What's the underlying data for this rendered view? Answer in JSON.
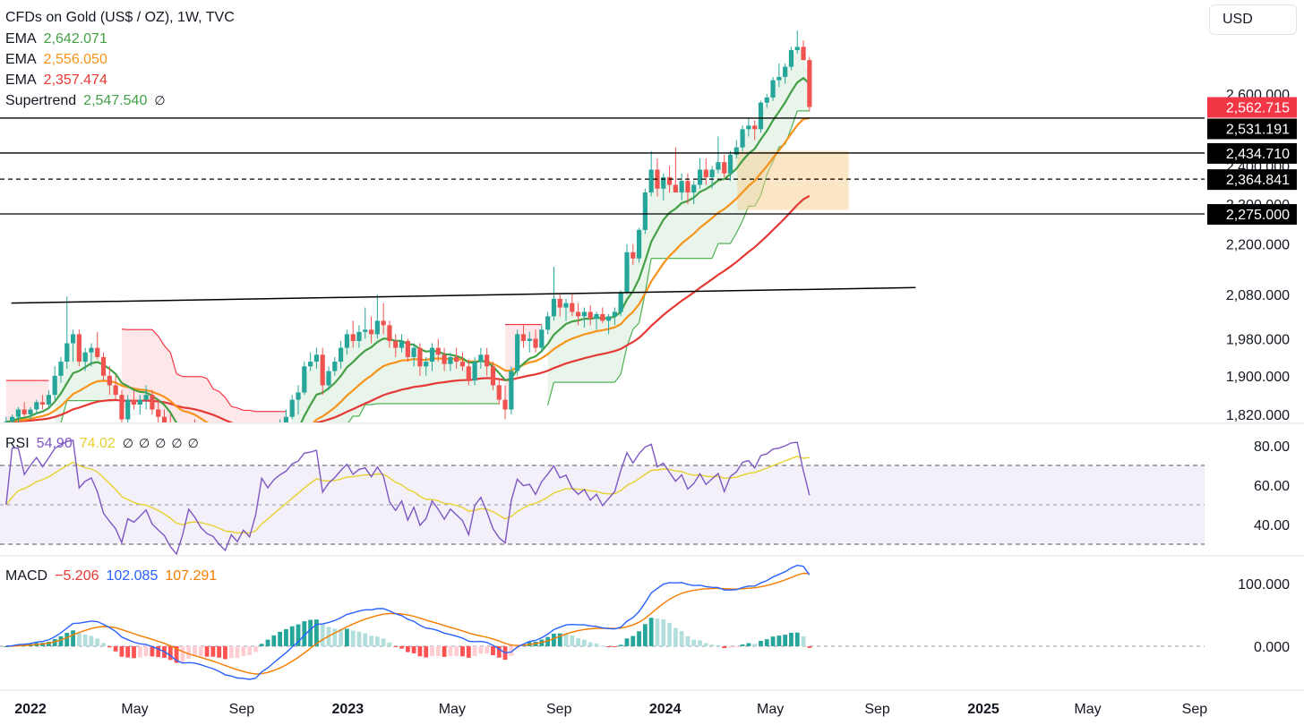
{
  "header": {
    "symbol": "CFDs on Gold (US$ / OZ), 1W, TVC",
    "currency": "USD"
  },
  "legend_main": [
    {
      "label": "EMA",
      "value": "2,642.071",
      "color": "#43a047"
    },
    {
      "label": "EMA",
      "value": "2,556.050",
      "color": "#f7931a"
    },
    {
      "label": "EMA",
      "value": "2,357.474",
      "color": "#e53935"
    },
    {
      "label": "Supertrend",
      "value": "2,547.540",
      "color": "#43a047",
      "extra": "∅"
    }
  ],
  "legend_rsi": {
    "label": "RSI",
    "value": "54.90",
    "value_color": "#7e57c2",
    "ma": "74.02",
    "ma_color": "#e6d12f",
    "extras": [
      "∅",
      "∅",
      "∅",
      "∅",
      "∅"
    ]
  },
  "legend_macd": {
    "label": "MACD",
    "hist": "−5.206",
    "hist_color": "#e53935",
    "macd": "102.085",
    "macd_color": "#2962ff",
    "signal": "107.291",
    "signal_color": "#f57c00"
  },
  "colors": {
    "up": "#26a69a",
    "down": "#ef5350",
    "ema_fast": "#43a047",
    "ema_mid": "#f7931a",
    "ema_slow": "#e53935",
    "rsi": "#7e57c2",
    "rsi_ma": "#e6d12f",
    "macd": "#2962ff",
    "signal": "#f57c00"
  },
  "chart_data": {
    "type": "candlestick",
    "timeframe": "1W",
    "x_ticks": [
      {
        "label": "2022",
        "date": "2022-01-01",
        "bold": true
      },
      {
        "label": "May",
        "date": "2022-05-01"
      },
      {
        "label": "Sep",
        "date": "2022-09-01"
      },
      {
        "label": "2023",
        "date": "2023-01-01",
        "bold": true
      },
      {
        "label": "May",
        "date": "2023-05-01"
      },
      {
        "label": "Sep",
        "date": "2023-09-01"
      },
      {
        "label": "2024",
        "date": "2024-01-01",
        "bold": true
      },
      {
        "label": "May",
        "date": "2024-05-01"
      },
      {
        "label": "Sep",
        "date": "2024-09-01"
      },
      {
        "label": "2025",
        "date": "2025-01-01",
        "bold": true
      },
      {
        "label": "May",
        "date": "2025-05-01"
      },
      {
        "label": "Sep",
        "date": "2025-09-01"
      }
    ],
    "price_axis": {
      "ticks": [
        {
          "value": 1820,
          "label": "1,820.000"
        },
        {
          "value": 1900,
          "label": "1,900.000"
        },
        {
          "value": 1980,
          "label": "1,980.000"
        },
        {
          "value": 2080,
          "label": "2,080.000"
        },
        {
          "value": 2200,
          "label": "2,200.000"
        },
        {
          "value": 2300,
          "label": "2,300.000"
        },
        {
          "value": 2400,
          "label": "2,400.000"
        },
        {
          "value": 2600,
          "label": "2,600.000"
        }
      ],
      "scale": "log"
    },
    "price_labels": [
      {
        "value": 2562.715,
        "label": "2,562.715",
        "bg": "#f23645"
      },
      {
        "value": 2531.191,
        "label": "2,531.191",
        "bg": "#000000"
      },
      {
        "value": 2434.71,
        "label": "2,434.710",
        "bg": "#000000"
      },
      {
        "value": 2364.841,
        "label": "2,364.841",
        "bg": "#000000"
      },
      {
        "value": 2275.0,
        "label": "2,275.000",
        "bg": "#000000"
      }
    ],
    "horizontal_lines": [
      {
        "value": 2531.191,
        "style": "solid"
      },
      {
        "value": 2434.71,
        "style": "solid"
      },
      {
        "value": 2364.841,
        "style": "dashed"
      },
      {
        "value": 2275.0,
        "style": "solid"
      }
    ],
    "trendline": {
      "from": {
        "date": "2021-12-10",
        "price": 2060
      },
      "to": {
        "date": "2024-10-15",
        "price": 2096
      }
    },
    "consolidation_box": {
      "from_date": "2024-03-24",
      "to_date": "2024-07-30",
      "low": 2285,
      "high": 2440
    },
    "candles_ohlc": [
      [
        1800,
        1815,
        1785,
        1805
      ],
      [
        1805,
        1820,
        1795,
        1815
      ],
      [
        1815,
        1835,
        1800,
        1830
      ],
      [
        1830,
        1845,
        1815,
        1820
      ],
      [
        1820,
        1835,
        1810,
        1830
      ],
      [
        1830,
        1850,
        1820,
        1845
      ],
      [
        1845,
        1860,
        1830,
        1840
      ],
      [
        1840,
        1870,
        1830,
        1860
      ],
      [
        1860,
        1920,
        1850,
        1900
      ],
      [
        1900,
        1940,
        1885,
        1930
      ],
      [
        1930,
        2075,
        1915,
        1970
      ],
      [
        1970,
        2000,
        1930,
        1990
      ],
      [
        1990,
        2000,
        1920,
        1930
      ],
      [
        1930,
        1960,
        1910,
        1950
      ],
      [
        1950,
        1970,
        1920,
        1960
      ],
      [
        1960,
        1995,
        1935,
        1940
      ],
      [
        1940,
        1950,
        1890,
        1900
      ],
      [
        1900,
        1920,
        1860,
        1880
      ],
      [
        1880,
        1900,
        1850,
        1860
      ],
      [
        1860,
        1870,
        1790,
        1810
      ],
      [
        1810,
        1860,
        1790,
        1850
      ],
      [
        1850,
        1870,
        1830,
        1840
      ],
      [
        1840,
        1860,
        1820,
        1850
      ],
      [
        1850,
        1880,
        1830,
        1860
      ],
      [
        1860,
        1870,
        1820,
        1830
      ],
      [
        1830,
        1850,
        1800,
        1815
      ],
      [
        1815,
        1830,
        1780,
        1800
      ],
      [
        1800,
        1820,
        1750,
        1760
      ],
      [
        1760,
        1770,
        1700,
        1720
      ],
      [
        1720,
        1760,
        1690,
        1745
      ],
      [
        1745,
        1800,
        1730,
        1790
      ],
      [
        1790,
        1810,
        1760,
        1770
      ],
      [
        1770,
        1780,
        1730,
        1740
      ],
      [
        1740,
        1750,
        1700,
        1720
      ],
      [
        1720,
        1730,
        1680,
        1710
      ],
      [
        1710,
        1730,
        1660,
        1680
      ],
      [
        1680,
        1720,
        1620,
        1650
      ],
      [
        1650,
        1680,
        1630,
        1670
      ],
      [
        1670,
        1680,
        1630,
        1645
      ],
      [
        1645,
        1680,
        1620,
        1660
      ],
      [
        1660,
        1680,
        1630,
        1640
      ],
      [
        1640,
        1680,
        1620,
        1670
      ],
      [
        1670,
        1780,
        1660,
        1770
      ],
      [
        1770,
        1790,
        1740,
        1750
      ],
      [
        1750,
        1790,
        1740,
        1780
      ],
      [
        1780,
        1810,
        1760,
        1800
      ],
      [
        1800,
        1830,
        1785,
        1815
      ],
      [
        1815,
        1860,
        1810,
        1850
      ],
      [
        1850,
        1880,
        1820,
        1865
      ],
      [
        1865,
        1930,
        1860,
        1920
      ],
      [
        1920,
        1950,
        1910,
        1930
      ],
      [
        1930,
        1960,
        1915,
        1945
      ],
      [
        1945,
        1960,
        1860,
        1880
      ],
      [
        1880,
        1920,
        1870,
        1910
      ],
      [
        1910,
        1940,
        1900,
        1930
      ],
      [
        1930,
        1975,
        1915,
        1960
      ],
      [
        1960,
        2000,
        1945,
        1990
      ],
      [
        1990,
        2020,
        1960,
        1975
      ],
      [
        1975,
        2010,
        1960,
        1995
      ],
      [
        1995,
        2050,
        1980,
        2000
      ],
      [
        2000,
        2030,
        1970,
        1990
      ],
      [
        1990,
        2080,
        1980,
        2020
      ],
      [
        2020,
        2060,
        1990,
        2010
      ],
      [
        2010,
        2020,
        1960,
        1975
      ],
      [
        1975,
        1990,
        1940,
        1960
      ],
      [
        1960,
        1990,
        1950,
        1975
      ],
      [
        1975,
        1980,
        1930,
        1940
      ],
      [
        1940,
        1970,
        1920,
        1960
      ],
      [
        1960,
        1970,
        1900,
        1920
      ],
      [
        1920,
        1940,
        1900,
        1930
      ],
      [
        1930,
        1970,
        1910,
        1960
      ],
      [
        1960,
        1980,
        1930,
        1945
      ],
      [
        1945,
        1960,
        1910,
        1925
      ],
      [
        1925,
        1950,
        1910,
        1940
      ],
      [
        1940,
        1960,
        1915,
        1930
      ],
      [
        1930,
        1950,
        1910,
        1920
      ],
      [
        1920,
        1935,
        1880,
        1890
      ],
      [
        1890,
        1940,
        1880,
        1930
      ],
      [
        1930,
        1960,
        1915,
        1945
      ],
      [
        1945,
        1960,
        1900,
        1920
      ],
      [
        1920,
        1930,
        1870,
        1880
      ],
      [
        1880,
        1895,
        1840,
        1850
      ],
      [
        1850,
        1880,
        1810,
        1830
      ],
      [
        1830,
        1920,
        1820,
        1910
      ],
      [
        1910,
        2000,
        1900,
        1990
      ],
      [
        1990,
        2010,
        1960,
        1975
      ],
      [
        1975,
        1995,
        1950,
        1980
      ],
      [
        1980,
        2000,
        1950,
        1960
      ],
      [
        1960,
        2010,
        1950,
        2000
      ],
      [
        2000,
        2040,
        1990,
        2030
      ],
      [
        2030,
        2145,
        2020,
        2070
      ],
      [
        2070,
        2080,
        2030,
        2050
      ],
      [
        2050,
        2070,
        2020,
        2060
      ],
      [
        2060,
        2080,
        2030,
        2040
      ],
      [
        2040,
        2060,
        2010,
        2030
      ],
      [
        2030,
        2050,
        2005,
        2040
      ],
      [
        2040,
        2055,
        2010,
        2025
      ],
      [
        2025,
        2040,
        2000,
        2035
      ],
      [
        2035,
        2050,
        2015,
        2020
      ],
      [
        2020,
        2035,
        1990,
        2030
      ],
      [
        2030,
        2050,
        2010,
        2040
      ],
      [
        2040,
        2090,
        2030,
        2085
      ],
      [
        2085,
        2200,
        2080,
        2180
      ],
      [
        2180,
        2200,
        2150,
        2165
      ],
      [
        2165,
        2240,
        2155,
        2235
      ],
      [
        2235,
        2340,
        2225,
        2330
      ],
      [
        2330,
        2440,
        2320,
        2390
      ],
      [
        2390,
        2420,
        2320,
        2340
      ],
      [
        2340,
        2380,
        2310,
        2370
      ],
      [
        2370,
        2400,
        2330,
        2350
      ],
      [
        2350,
        2450,
        2340,
        2330
      ],
      [
        2330,
        2380,
        2310,
        2360
      ],
      [
        2360,
        2380,
        2300,
        2330
      ],
      [
        2330,
        2360,
        2300,
        2350
      ],
      [
        2350,
        2420,
        2340,
        2390
      ],
      [
        2390,
        2420,
        2350,
        2370
      ],
      [
        2370,
        2400,
        2340,
        2390
      ],
      [
        2390,
        2480,
        2380,
        2410
      ],
      [
        2410,
        2430,
        2370,
        2380
      ],
      [
        2380,
        2440,
        2360,
        2430
      ],
      [
        2430,
        2470,
        2420,
        2450
      ],
      [
        2450,
        2510,
        2440,
        2500
      ],
      [
        2500,
        2530,
        2480,
        2510
      ],
      [
        2510,
        2525,
        2470,
        2500
      ],
      [
        2500,
        2580,
        2490,
        2575
      ],
      [
        2575,
        2600,
        2560,
        2590
      ],
      [
        2590,
        2650,
        2580,
        2640
      ],
      [
        2640,
        2690,
        2620,
        2650
      ],
      [
        2650,
        2690,
        2630,
        2680
      ],
      [
        2680,
        2740,
        2670,
        2730
      ],
      [
        2730,
        2790,
        2720,
        2740
      ],
      [
        2740,
        2760,
        2700,
        2700
      ],
      [
        2700,
        2710,
        2550,
        2562.715
      ]
    ],
    "rsi": {
      "ticks": [
        {
          "value": 40,
          "label": "40.00"
        },
        {
          "value": 60,
          "label": "60.00"
        },
        {
          "value": 80,
          "label": "80.00"
        }
      ],
      "levels": [
        30,
        50,
        70
      ],
      "last": 54.9,
      "ma_last": 74.02
    },
    "macd": {
      "ticks": [
        {
          "value": 0,
          "label": "0.000"
        },
        {
          "value": 100,
          "label": "100.000"
        }
      ],
      "last_hist": -5.206,
      "last_macd": 102.085,
      "last_signal": 107.291
    }
  }
}
